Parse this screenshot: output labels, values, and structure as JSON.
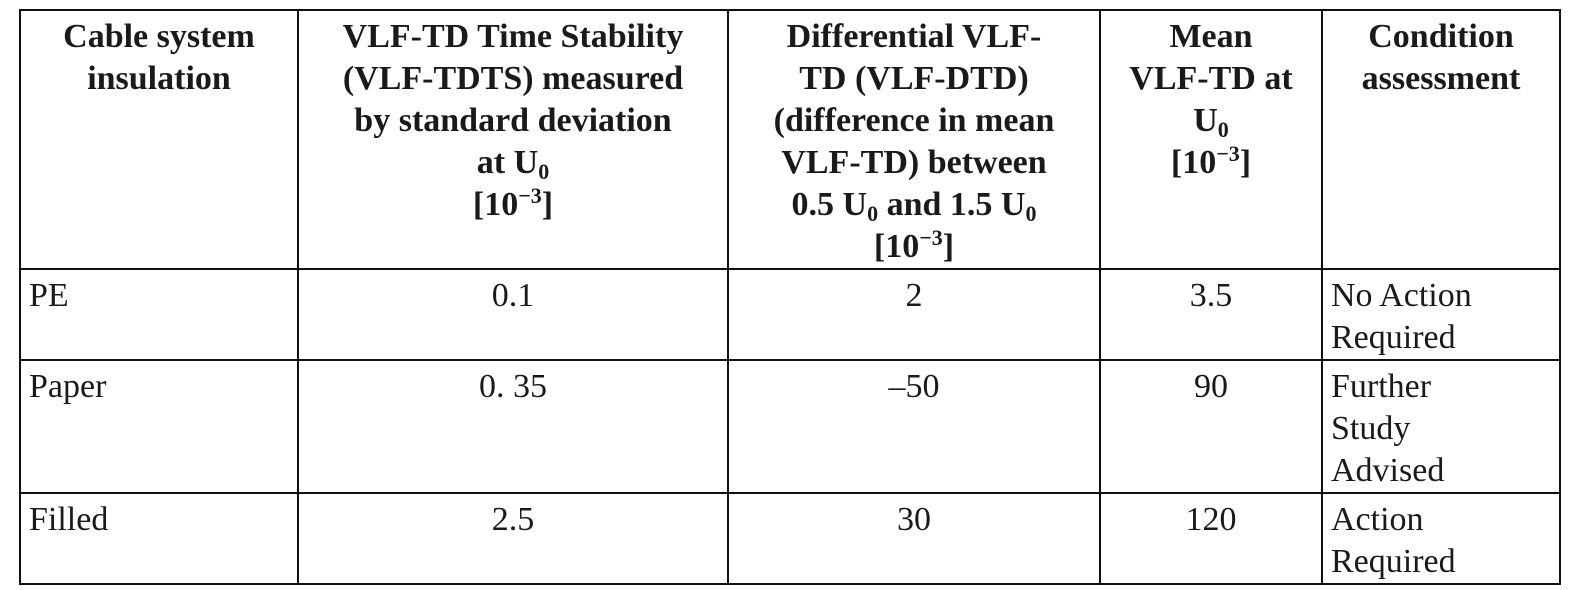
{
  "table": {
    "headers": [
      {
        "lines": [
          "Cable system",
          "insulation"
        ]
      },
      {
        "lines": [
          "VLF-TD Time Stability",
          "(VLF-TDTS) measured",
          "by standard deviation"
        ],
        "u_prefix": "at U",
        "u_sub": "0",
        "unit_base": "[10",
        "unit_exp": "−3",
        "unit_close": "]"
      },
      {
        "lines": [
          "Differential VLF-",
          "TD (VLF-DTD)",
          "(difference in mean",
          "VLF-TD) between"
        ],
        "range_a": "0.5 U",
        "range_sub_a": "0",
        "range_mid": " and 1.5 U",
        "range_sub_b": "0",
        "unit_base": "[10",
        "unit_exp": "−3",
        "unit_close": "]"
      },
      {
        "lines": [
          "Mean",
          "VLF-TD at"
        ],
        "u_prefix": "U",
        "u_sub": "0",
        "unit_base": "[10",
        "unit_exp": "−3",
        "unit_close": "]"
      },
      {
        "lines": [
          "Condition",
          "assessment"
        ]
      }
    ],
    "rows": [
      {
        "insulation": "PE",
        "tdts": "0.1",
        "dtd": "2",
        "mean": "3.5",
        "condition": [
          "No Action",
          "Required"
        ]
      },
      {
        "insulation": "Paper",
        "tdts": "0. 35",
        "dtd": "–50",
        "mean": "90",
        "condition": [
          "Further",
          "Study",
          "Advised"
        ]
      },
      {
        "insulation": "Filled",
        "tdts": "2.5",
        "dtd": "30",
        "mean": "120",
        "condition": [
          "Action",
          "Required"
        ]
      }
    ]
  }
}
